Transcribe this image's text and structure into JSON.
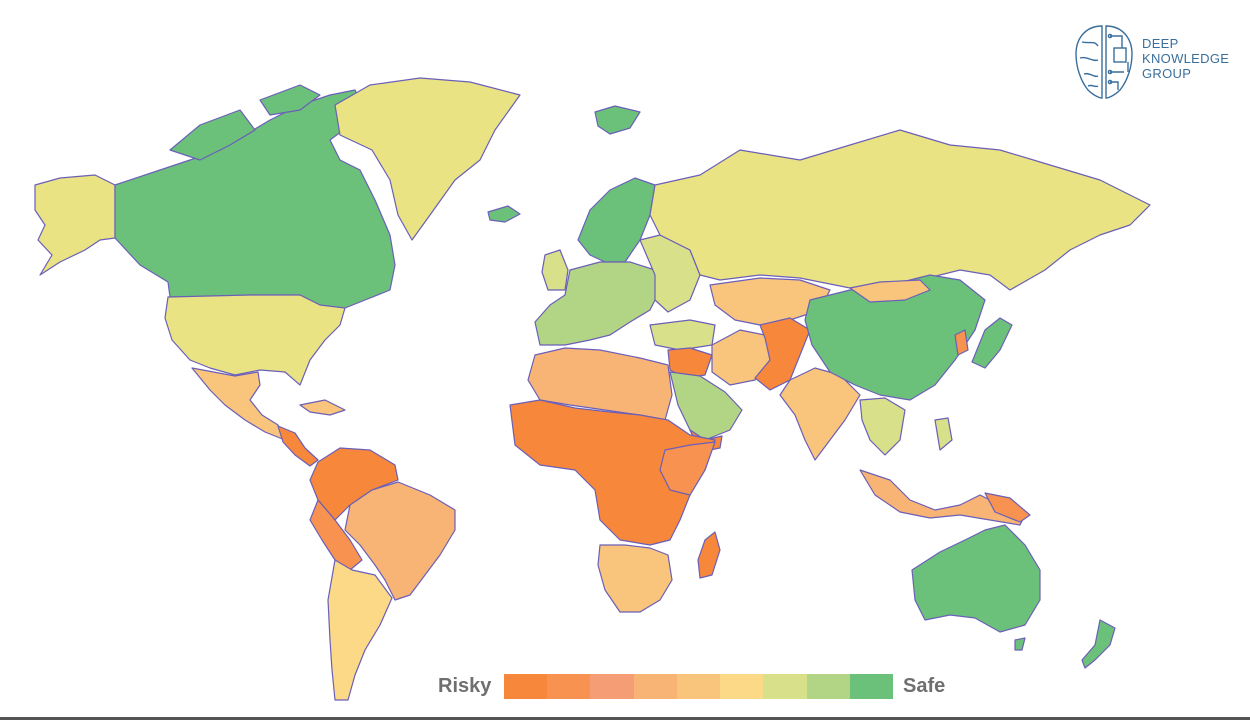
{
  "brand": {
    "lines": [
      "DEEP",
      "KNOWLEDGE",
      "GROUP"
    ],
    "icon": "brain-circuit-icon",
    "color": "#3a6f9c"
  },
  "legend": {
    "low_label": "Risky",
    "high_label": "Safe",
    "scale_colors": [
      "#f7873a",
      "#f79250",
      "#f59d75",
      "#f8b475",
      "#f9c47c",
      "#fbd987",
      "#d8e08a",
      "#b1d585",
      "#6cc17a"
    ]
  },
  "map": {
    "ocean_color": "#ffffff",
    "border_color": "#6b5fb8",
    "regions": [
      {
        "name": "Canada",
        "rating": "safe"
      },
      {
        "name": "Greenland",
        "rating": "moderate"
      },
      {
        "name": "Alaska",
        "rating": "moderate"
      },
      {
        "name": "United States",
        "rating": "moderate"
      },
      {
        "name": "Mexico",
        "rating": "medium"
      },
      {
        "name": "Central America",
        "rating": "risky"
      },
      {
        "name": "South America North",
        "rating": "risky"
      },
      {
        "name": "Brazil",
        "rating": "medium-risky"
      },
      {
        "name": "Southern Cone",
        "rating": "moderate"
      },
      {
        "name": "Western Europe",
        "rating": "safe-moderate"
      },
      {
        "name": "Scandinavia",
        "rating": "safe"
      },
      {
        "name": "Russia",
        "rating": "moderate"
      },
      {
        "name": "North Africa",
        "rating": "medium-risky"
      },
      {
        "name": "Sub-Saharan Africa",
        "rating": "risky"
      },
      {
        "name": "Southern Africa",
        "rating": "medium"
      },
      {
        "name": "Madagascar",
        "rating": "very-risky"
      },
      {
        "name": "Arabia",
        "rating": "safe-moderate"
      },
      {
        "name": "Middle East",
        "rating": "very-risky"
      },
      {
        "name": "Central Asia",
        "rating": "medium"
      },
      {
        "name": "Afghanistan Pakistan",
        "rating": "very-risky"
      },
      {
        "name": "India",
        "rating": "medium"
      },
      {
        "name": "China",
        "rating": "safe"
      },
      {
        "name": "Southeast Asia",
        "rating": "moderate"
      },
      {
        "name": "Indonesia",
        "rating": "medium-risky"
      },
      {
        "name": "Japan",
        "rating": "safe"
      },
      {
        "name": "Australia",
        "rating": "safe"
      },
      {
        "name": "New Zealand",
        "rating": "safe"
      },
      {
        "name": "Iceland",
        "rating": "safe"
      },
      {
        "name": "Svalbard",
        "rating": "safe"
      }
    ]
  }
}
